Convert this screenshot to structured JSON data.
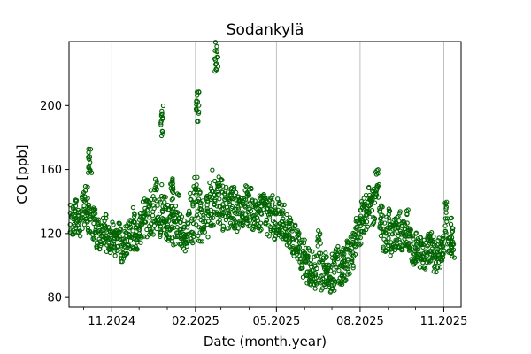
{
  "chart_data": {
    "type": "scatter",
    "title": "Sodankylä",
    "xlabel": "Date (month.year)",
    "ylabel": "CO [ppb]",
    "x_range": [
      "2024-09-15",
      "2025-11-20"
    ],
    "ylim": [
      74,
      240
    ],
    "x_ticks": [
      {
        "date": "2024-11-01",
        "label": "11.2024"
      },
      {
        "date": "2025-02-01",
        "label": "02.2025"
      },
      {
        "date": "2025-05-01",
        "label": "05.2025"
      },
      {
        "date": "2025-08-01",
        "label": "08.2025"
      },
      {
        "date": "2025-11-01",
        "label": "11.2025"
      }
    ],
    "x_minor_ticks": [
      "2024-10-01",
      "2024-12-01",
      "2025-01-01",
      "2025-03-01",
      "2025-04-01",
      "2025-06-01",
      "2025-07-01",
      "2025-09-01",
      "2025-10-01"
    ],
    "y_ticks": [
      80,
      120,
      160,
      200
    ],
    "grid": {
      "x_major": true,
      "y": false
    },
    "marker": "hollow-circle",
    "marker_color": "#006400",
    "series": [
      {
        "x": [
          "2024-09-18",
          "2024-09-22",
          "2024-09-26",
          "2024-09-30",
          "2024-10-04",
          "2024-10-07",
          "2024-10-08",
          "2024-10-12",
          "2024-10-16",
          "2024-10-20",
          "2024-10-24",
          "2024-10-28",
          "2024-11-01",
          "2024-11-05",
          "2024-11-09",
          "2024-11-13",
          "2024-11-17",
          "2024-11-21",
          "2024-11-25",
          "2024-11-29",
          "2024-12-03",
          "2024-12-07",
          "2024-12-11",
          "2024-12-15",
          "2024-12-19",
          "2024-12-23",
          "2024-12-26",
          "2024-12-27",
          "2024-12-31",
          "2025-01-04",
          "2025-01-06",
          "2025-01-08",
          "2025-01-12",
          "2025-01-16",
          "2025-01-20",
          "2025-01-24",
          "2025-01-28",
          "2025-02-01",
          "2025-02-03",
          "2025-02-05",
          "2025-02-09",
          "2025-02-13",
          "2025-02-17",
          "2025-02-21",
          "2025-02-24",
          "2025-02-25",
          "2025-03-01",
          "2025-03-05",
          "2025-03-09",
          "2025-03-13",
          "2025-03-17",
          "2025-03-21",
          "2025-03-25",
          "2025-03-29",
          "2025-04-02",
          "2025-04-06",
          "2025-04-10",
          "2025-04-14",
          "2025-04-18",
          "2025-04-22",
          "2025-04-26",
          "2025-04-30",
          "2025-05-04",
          "2025-05-08",
          "2025-05-12",
          "2025-05-16",
          "2025-05-20",
          "2025-05-24",
          "2025-05-28",
          "2025-06-01",
          "2025-06-05",
          "2025-06-09",
          "2025-06-13",
          "2025-06-17",
          "2025-06-21",
          "2025-06-25",
          "2025-06-29",
          "2025-07-03",
          "2025-07-07",
          "2025-07-11",
          "2025-07-15",
          "2025-07-19",
          "2025-07-23",
          "2025-07-27",
          "2025-07-31",
          "2025-08-04",
          "2025-08-08",
          "2025-08-12",
          "2025-08-16",
          "2025-08-20",
          "2025-08-24",
          "2025-08-28",
          "2025-09-01",
          "2025-09-05",
          "2025-09-09",
          "2025-09-13",
          "2025-09-17",
          "2025-09-21",
          "2025-09-25",
          "2025-09-29",
          "2025-10-03",
          "2025-10-07",
          "2025-10-11",
          "2025-10-15",
          "2025-10-19",
          "2025-10-23",
          "2025-10-27",
          "2025-10-31",
          "2025-11-04",
          "2025-11-08",
          "2025-11-11"
        ],
        "y": [
          128,
          132,
          126,
          135,
          138,
          130,
          165,
          126,
          120,
          118,
          122,
          116,
          118,
          114,
          120,
          110,
          116,
          122,
          124,
          118,
          126,
          130,
          128,
          134,
          140,
          132,
          190,
          136,
          130,
          126,
          145,
          124,
          132,
          122,
          118,
          126,
          130,
          140,
          200,
          132,
          128,
          130,
          138,
          142,
          230,
          144,
          140,
          136,
          132,
          138,
          135,
          134,
          130,
          136,
          138,
          132,
          128,
          134,
          136,
          130,
          132,
          128,
          130,
          126,
          122,
          120,
          116,
          112,
          106,
          104,
          100,
          98,
          96,
          112,
          94,
          98,
          92,
          96,
          100,
          98,
          102,
          106,
          110,
          118,
          124,
          130,
          134,
          138,
          136,
          150,
          130,
          118,
          124,
          116,
          120,
          122,
          118,
          124,
          114,
          110,
          112,
          108,
          106,
          110,
          112,
          104,
          108,
          112,
          126,
          118,
          114
        ],
        "spread": [
          10,
          12,
          10,
          12,
          14,
          10,
          8,
          12,
          10,
          8,
          10,
          8,
          10,
          8,
          8,
          8,
          10,
          12,
          14,
          10,
          12,
          14,
          14,
          16,
          18,
          14,
          10,
          16,
          14,
          12,
          10,
          12,
          14,
          10,
          10,
          14,
          16,
          16,
          10,
          18,
          14,
          14,
          16,
          18,
          10,
          18,
          16,
          14,
          14,
          14,
          14,
          14,
          12,
          14,
          14,
          12,
          12,
          14,
          12,
          12,
          12,
          12,
          12,
          12,
          10,
          10,
          10,
          10,
          10,
          12,
          12,
          12,
          12,
          10,
          12,
          12,
          10,
          12,
          12,
          12,
          12,
          12,
          12,
          12,
          12,
          12,
          12,
          12,
          12,
          10,
          12,
          10,
          12,
          10,
          12,
          12,
          10,
          12,
          10,
          10,
          10,
          10,
          10,
          10,
          10,
          10,
          10,
          10,
          14,
          12,
          10
        ]
      }
    ]
  }
}
